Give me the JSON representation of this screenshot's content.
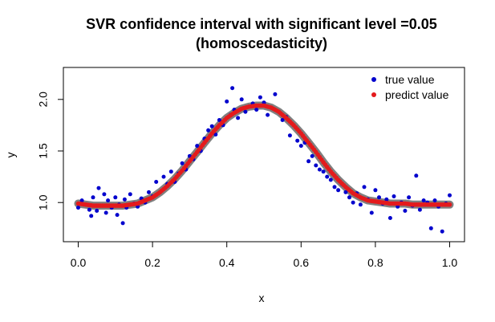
{
  "chart_data": {
    "type": "scatter",
    "title_line1": "SVR confidence interval with significant level =0.05",
    "title_line2": "(homoscedasticity)",
    "xlabel": "x",
    "ylabel": "y",
    "xlim": [
      -0.04,
      1.04
    ],
    "ylim": [
      0.62,
      2.31
    ],
    "x_ticks": [
      0.0,
      0.2,
      0.4,
      0.6,
      0.8,
      1.0
    ],
    "x_tick_labels": [
      "0.0",
      "0.2",
      "0.4",
      "0.6",
      "0.8",
      "1.0"
    ],
    "y_ticks": [
      1.0,
      1.5,
      2.0
    ],
    "y_tick_labels": [
      "1.0",
      "1.5",
      "2.0"
    ],
    "legend_position": "top-right",
    "colors": {
      "true": "#0000cd",
      "predict": "#e41a1c",
      "band": "#808080"
    },
    "series": [
      {
        "name": "true value",
        "color": "#0000cd",
        "x": [
          0.0,
          0.01,
          0.02,
          0.03,
          0.035,
          0.04,
          0.05,
          0.055,
          0.06,
          0.07,
          0.075,
          0.08,
          0.09,
          0.1,
          0.105,
          0.11,
          0.12,
          0.125,
          0.13,
          0.14,
          0.15,
          0.16,
          0.17,
          0.18,
          0.19,
          0.2,
          0.21,
          0.22,
          0.23,
          0.24,
          0.25,
          0.26,
          0.27,
          0.28,
          0.29,
          0.3,
          0.31,
          0.32,
          0.33,
          0.34,
          0.35,
          0.36,
          0.37,
          0.38,
          0.39,
          0.4,
          0.41,
          0.415,
          0.42,
          0.43,
          0.44,
          0.45,
          0.46,
          0.47,
          0.48,
          0.49,
          0.5,
          0.51,
          0.52,
          0.53,
          0.54,
          0.55,
          0.56,
          0.57,
          0.58,
          0.59,
          0.6,
          0.61,
          0.62,
          0.63,
          0.64,
          0.65,
          0.66,
          0.67,
          0.68,
          0.69,
          0.7,
          0.71,
          0.72,
          0.73,
          0.74,
          0.75,
          0.76,
          0.77,
          0.78,
          0.79,
          0.8,
          0.81,
          0.82,
          0.83,
          0.84,
          0.85,
          0.86,
          0.87,
          0.88,
          0.89,
          0.9,
          0.91,
          0.92,
          0.93,
          0.94,
          0.95,
          0.96,
          0.97,
          0.98,
          0.99,
          1.0
        ],
        "y": [
          0.95,
          1.02,
          0.98,
          0.93,
          0.87,
          1.05,
          0.92,
          1.14,
          0.97,
          1.08,
          0.9,
          1.02,
          0.95,
          1.05,
          0.88,
          0.98,
          0.8,
          1.03,
          0.95,
          1.08,
          0.99,
          0.96,
          1.04,
          1.0,
          1.1,
          1.06,
          1.2,
          1.1,
          1.25,
          1.18,
          1.3,
          1.2,
          1.28,
          1.38,
          1.32,
          1.45,
          1.42,
          1.55,
          1.5,
          1.62,
          1.7,
          1.74,
          1.66,
          1.8,
          1.75,
          1.98,
          1.85,
          2.11,
          1.9,
          1.82,
          2.0,
          1.88,
          1.93,
          1.96,
          1.9,
          2.02,
          1.97,
          1.85,
          1.92,
          2.05,
          1.88,
          1.8,
          1.83,
          1.65,
          1.75,
          1.6,
          1.55,
          1.58,
          1.4,
          1.45,
          1.36,
          1.32,
          1.3,
          1.25,
          1.22,
          1.15,
          1.12,
          1.18,
          1.1,
          1.05,
          1.0,
          1.09,
          0.98,
          1.15,
          1.03,
          0.9,
          1.12,
          1.05,
          0.99,
          1.03,
          0.85,
          1.06,
          0.96,
          1.0,
          0.92,
          1.05,
          0.97,
          1.26,
          0.93,
          1.02,
          1.0,
          0.75,
          1.02,
          0.96,
          0.72,
          0.99,
          1.07
        ]
      },
      {
        "name": "predict value",
        "color": "#e41a1c",
        "x": [
          0.0,
          0.02,
          0.04,
          0.06,
          0.08,
          0.1,
          0.12,
          0.14,
          0.16,
          0.18,
          0.2,
          0.22,
          0.24,
          0.26,
          0.28,
          0.3,
          0.32,
          0.34,
          0.36,
          0.38,
          0.4,
          0.42,
          0.44,
          0.46,
          0.48,
          0.5,
          0.52,
          0.54,
          0.56,
          0.58,
          0.6,
          0.62,
          0.64,
          0.66,
          0.68,
          0.7,
          0.72,
          0.74,
          0.76,
          0.78,
          0.8,
          0.82,
          0.84,
          0.86,
          0.88,
          0.9,
          0.92,
          0.94,
          0.96,
          0.98,
          1.0
        ],
        "y": [
          0.99,
          0.98,
          0.97,
          0.97,
          0.97,
          0.97,
          0.97,
          0.98,
          0.99,
          1.02,
          1.05,
          1.1,
          1.16,
          1.23,
          1.31,
          1.4,
          1.49,
          1.58,
          1.67,
          1.75,
          1.82,
          1.87,
          1.91,
          1.93,
          1.94,
          1.94,
          1.92,
          1.88,
          1.82,
          1.75,
          1.67,
          1.58,
          1.49,
          1.39,
          1.3,
          1.22,
          1.15,
          1.09,
          1.05,
          1.02,
          1.01,
          1.0,
          0.99,
          0.99,
          0.99,
          0.98,
          0.98,
          0.98,
          0.98,
          0.98,
          0.98
        ]
      }
    ]
  }
}
